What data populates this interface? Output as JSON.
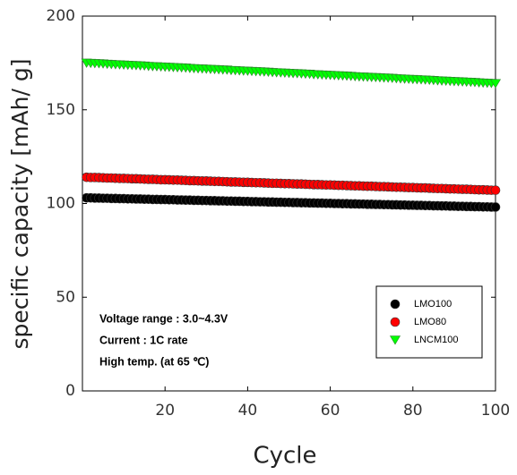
{
  "chart_data": {
    "type": "scatter",
    "xlabel": "Cycle",
    "ylabel": "specific capacity [mAh/ g]",
    "xlim": [
      0,
      100
    ],
    "ylim": [
      0,
      200
    ],
    "xticks": [
      20,
      40,
      60,
      80,
      100
    ],
    "yticks": [
      0,
      50,
      100,
      150,
      200
    ],
    "grid": false,
    "legend": "lower right",
    "annotations": [
      "Voltage range : 3.0~4.3V",
      "Current : 1C rate",
      "High temp. (at 65 ℃)"
    ],
    "x": [
      1,
      2,
      3,
      4,
      5,
      6,
      7,
      8,
      9,
      10,
      11,
      12,
      13,
      14,
      15,
      16,
      17,
      18,
      19,
      20,
      21,
      22,
      23,
      24,
      25,
      26,
      27,
      28,
      29,
      30,
      31,
      32,
      33,
      34,
      35,
      36,
      37,
      38,
      39,
      40,
      41,
      42,
      43,
      44,
      45,
      46,
      47,
      48,
      49,
      50,
      51,
      52,
      53,
      54,
      55,
      56,
      57,
      58,
      59,
      60,
      61,
      62,
      63,
      64,
      65,
      66,
      67,
      68,
      69,
      70,
      71,
      72,
      73,
      74,
      75,
      76,
      77,
      78,
      79,
      80,
      81,
      82,
      83,
      84,
      85,
      86,
      87,
      88,
      89,
      90,
      91,
      92,
      93,
      94,
      95,
      96,
      97,
      98,
      99,
      100
    ],
    "series": [
      {
        "name": "LMO100",
        "color": "#000000",
        "marker": "circle",
        "values": [
          103.0,
          103.0,
          102.9,
          102.9,
          102.8,
          102.8,
          102.7,
          102.7,
          102.6,
          102.6,
          102.5,
          102.5,
          102.4,
          102.4,
          102.3,
          102.3,
          102.2,
          102.2,
          102.1,
          102.1,
          102.0,
          102.0,
          101.9,
          101.9,
          101.8,
          101.8,
          101.7,
          101.7,
          101.6,
          101.6,
          101.5,
          101.5,
          101.4,
          101.4,
          101.3,
          101.3,
          101.2,
          101.2,
          101.1,
          101.1,
          101.0,
          101.0,
          100.9,
          100.9,
          100.8,
          100.8,
          100.7,
          100.7,
          100.6,
          100.6,
          100.5,
          100.5,
          100.4,
          100.4,
          100.3,
          100.3,
          100.2,
          100.2,
          100.1,
          100.1,
          100.0,
          100.0,
          99.9,
          99.9,
          99.8,
          99.8,
          99.7,
          99.7,
          99.6,
          99.6,
          99.5,
          99.5,
          99.4,
          99.4,
          99.3,
          99.3,
          99.2,
          99.2,
          99.1,
          99.1,
          99.0,
          99.0,
          98.9,
          98.9,
          98.8,
          98.8,
          98.7,
          98.7,
          98.6,
          98.6,
          98.5,
          98.5,
          98.4,
          98.4,
          98.3,
          98.3,
          98.2,
          98.2,
          98.1,
          98.1
        ]
      },
      {
        "name": "LMO80",
        "color": "#ff0000",
        "marker": "circle",
        "values": [
          114.0,
          113.9,
          113.9,
          113.8,
          113.7,
          113.6,
          113.6,
          113.5,
          113.4,
          113.4,
          113.3,
          113.2,
          113.2,
          113.1,
          113.0,
          112.9,
          112.9,
          112.8,
          112.7,
          112.7,
          112.6,
          112.5,
          112.5,
          112.4,
          112.3,
          112.2,
          112.2,
          112.1,
          112.0,
          112.0,
          111.9,
          111.8,
          111.8,
          111.7,
          111.6,
          111.5,
          111.5,
          111.4,
          111.3,
          111.3,
          111.2,
          111.1,
          111.1,
          111.0,
          110.9,
          110.8,
          110.8,
          110.7,
          110.6,
          110.6,
          110.5,
          110.4,
          110.4,
          110.3,
          110.2,
          110.1,
          110.1,
          110.0,
          109.9,
          109.9,
          109.8,
          109.7,
          109.7,
          109.6,
          109.5,
          109.4,
          109.4,
          109.3,
          109.2,
          109.2,
          109.1,
          109.0,
          109.0,
          108.9,
          108.8,
          108.7,
          108.7,
          108.6,
          108.5,
          108.5,
          108.4,
          108.3,
          108.3,
          108.2,
          108.1,
          108.0,
          108.0,
          107.9,
          107.8,
          107.8,
          107.7,
          107.6,
          107.6,
          107.5,
          107.4,
          107.3,
          107.3,
          107.2,
          107.1,
          107.1
        ]
      },
      {
        "name": "LNCM100",
        "color": "#00ff00",
        "marker": "triangle-down",
        "values": [
          175.0,
          174.9,
          174.8,
          174.7,
          174.6,
          174.4,
          174.3,
          174.2,
          174.1,
          174.0,
          173.9,
          173.8,
          173.7,
          173.6,
          173.5,
          173.3,
          173.2,
          173.1,
          173.0,
          172.9,
          172.8,
          172.7,
          172.6,
          172.5,
          172.4,
          172.2,
          172.1,
          172.0,
          171.9,
          171.8,
          171.7,
          171.6,
          171.5,
          171.4,
          171.3,
          171.1,
          171.0,
          170.9,
          170.8,
          170.7,
          170.6,
          170.5,
          170.4,
          170.3,
          170.2,
          170.0,
          169.9,
          169.8,
          169.7,
          169.6,
          169.5,
          169.4,
          169.3,
          169.2,
          169.1,
          168.9,
          168.8,
          168.7,
          168.6,
          168.5,
          168.4,
          168.3,
          168.2,
          168.1,
          168.0,
          167.8,
          167.7,
          167.6,
          167.5,
          167.4,
          167.3,
          167.2,
          167.1,
          167.0,
          166.9,
          166.7,
          166.6,
          166.5,
          166.4,
          166.3,
          166.2,
          166.1,
          166.0,
          165.9,
          165.8,
          165.6,
          165.5,
          165.4,
          165.3,
          165.2,
          165.1,
          165.0,
          164.9,
          164.8,
          164.7,
          164.5,
          164.4,
          164.3,
          164.2,
          164.1
        ]
      }
    ]
  }
}
